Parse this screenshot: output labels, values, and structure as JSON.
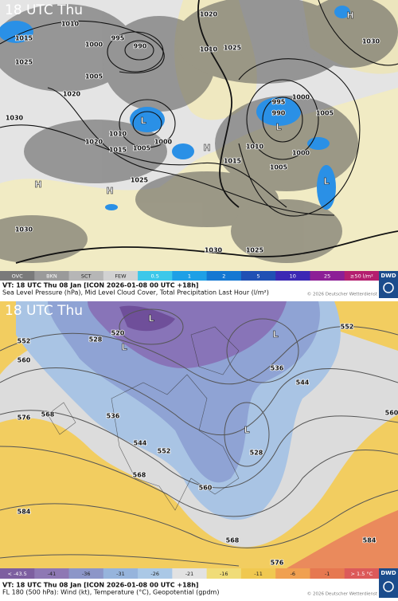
{
  "top_panel": {
    "time_label": "18 UTC Thu",
    "map_labels": [
      "1015",
      "1025",
      "1010",
      "995",
      "990",
      "1000",
      "1005",
      "1020",
      "1030",
      "1010",
      "1015",
      "1020",
      "1005",
      "1000",
      "1025",
      "1020",
      "1010",
      "1025",
      "1030",
      "995",
      "990",
      "1000",
      "1005",
      "1010",
      "1000",
      "1005",
      "1015",
      "1030",
      "1030",
      "1025",
      "L",
      "L",
      "L",
      "H",
      "H",
      "H",
      "H"
    ],
    "legend": [
      "OVC",
      "BKN",
      "SCT",
      "FEW",
      "0.5",
      "1",
      "2",
      "5",
      "10",
      "25",
      "≥50 l/m²"
    ],
    "caption_line1": "VT: 18 UTC Thu  08 Jan [ICON 2026-01-08 00 UTC +18h]",
    "caption_line2": "Sea Level Pressure (hPa), Mid Level Cloud Cover, Total Precipitation Last Hour (l/m²)",
    "copyright": "© 2026 Deutscher Wetterdienst",
    "logo": "DWD"
  },
  "bottom_panel": {
    "time_label": "18 UTC Thu",
    "map_labels": [
      "552",
      "560",
      "576",
      "568",
      "584",
      "520",
      "528",
      "536",
      "544",
      "552",
      "568",
      "560",
      "528",
      "536",
      "544",
      "552",
      "560",
      "568",
      "576",
      "584",
      "L",
      "L",
      "L",
      "L"
    ],
    "legend": [
      "< -43.5",
      "-41",
      "-36",
      "-31",
      "-26",
      "-21",
      "-16",
      "-11",
      "-6",
      "-1",
      "> 1.5 °C"
    ],
    "caption_line1": "VT: 18 UTC Thu  08 Jan [ICON 2026-01-08 00 UTC +18h]",
    "caption_line2": "FL 180 (500 hPa): Wind (kt), Temperature (°C), Geopotential (gpdm)",
    "copyright": "© 2026 Deutscher Wetterdienst",
    "logo": "DWD"
  }
}
